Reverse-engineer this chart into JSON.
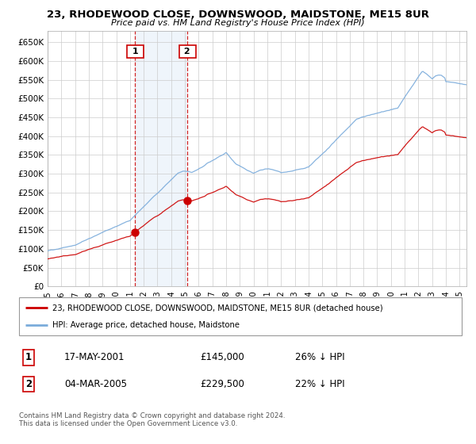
{
  "title": "23, RHODEWOOD CLOSE, DOWNSWOOD, MAIDSTONE, ME15 8UR",
  "subtitle": "Price paid vs. HM Land Registry's House Price Index (HPI)",
  "ylabel_ticks": [
    "£0",
    "£50K",
    "£100K",
    "£150K",
    "£200K",
    "£250K",
    "£300K",
    "£350K",
    "£400K",
    "£450K",
    "£500K",
    "£550K",
    "£600K",
    "£650K"
  ],
  "ytick_vals": [
    0,
    50000,
    100000,
    150000,
    200000,
    250000,
    300000,
    350000,
    400000,
    450000,
    500000,
    550000,
    600000,
    650000
  ],
  "ylim": [
    0,
    680000
  ],
  "xlim_start": 1995.0,
  "xlim_end": 2025.5,
  "legend_line1": "23, RHODEWOOD CLOSE, DOWNSWOOD, MAIDSTONE, ME15 8UR (detached house)",
  "legend_line2": "HPI: Average price, detached house, Maidstone",
  "sale1_date": 2001.375,
  "sale1_price": 145000,
  "sale1_label": "1",
  "sale2_date": 2005.17,
  "sale2_price": 229500,
  "sale2_label": "2",
  "table_row1": [
    "1",
    "17-MAY-2001",
    "£145,000",
    "26% ↓ HPI"
  ],
  "table_row2": [
    "2",
    "04-MAR-2005",
    "£229,500",
    "22% ↓ HPI"
  ],
  "footnote": "Contains HM Land Registry data © Crown copyright and database right 2024.\nThis data is licensed under the Open Government Licence v3.0.",
  "line_color_red": "#cc0000",
  "line_color_blue": "#7aabdb",
  "highlight_color": "#ddeeff",
  "grid_color": "#cccccc",
  "background_color": "#ffffff"
}
